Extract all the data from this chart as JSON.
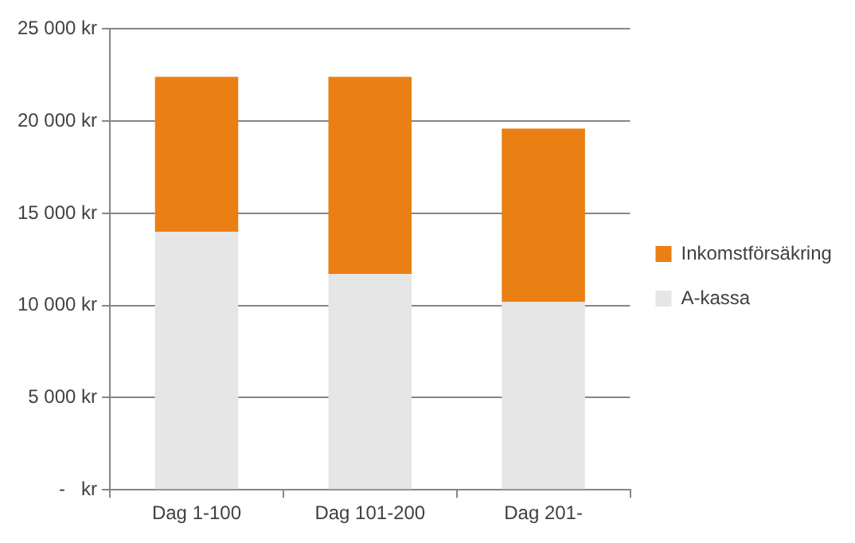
{
  "chart_data": {
    "type": "bar",
    "stacked": true,
    "categories": [
      "Dag 1-100",
      "Dag 101-200",
      "Dag 201-"
    ],
    "series": [
      {
        "name": "A-kassa",
        "color": "#e6e6e6",
        "values": [
          14000,
          11700,
          10200
        ]
      },
      {
        "name": "Inkomstförsäkring",
        "color": "#ea7f14",
        "values": [
          8400,
          10700,
          9400
        ]
      }
    ],
    "ylim": [
      0,
      25000
    ],
    "yticks": [
      {
        "value": 0,
        "label": "-   kr"
      },
      {
        "value": 5000,
        "label": "5 000 kr"
      },
      {
        "value": 10000,
        "label": "10 000 kr"
      },
      {
        "value": 15000,
        "label": "15 000 kr"
      },
      {
        "value": 20000,
        "label": "20 000 kr"
      },
      {
        "value": 25000,
        "label": "25 000 kr"
      }
    ],
    "grid": "y",
    "legend": "right"
  }
}
